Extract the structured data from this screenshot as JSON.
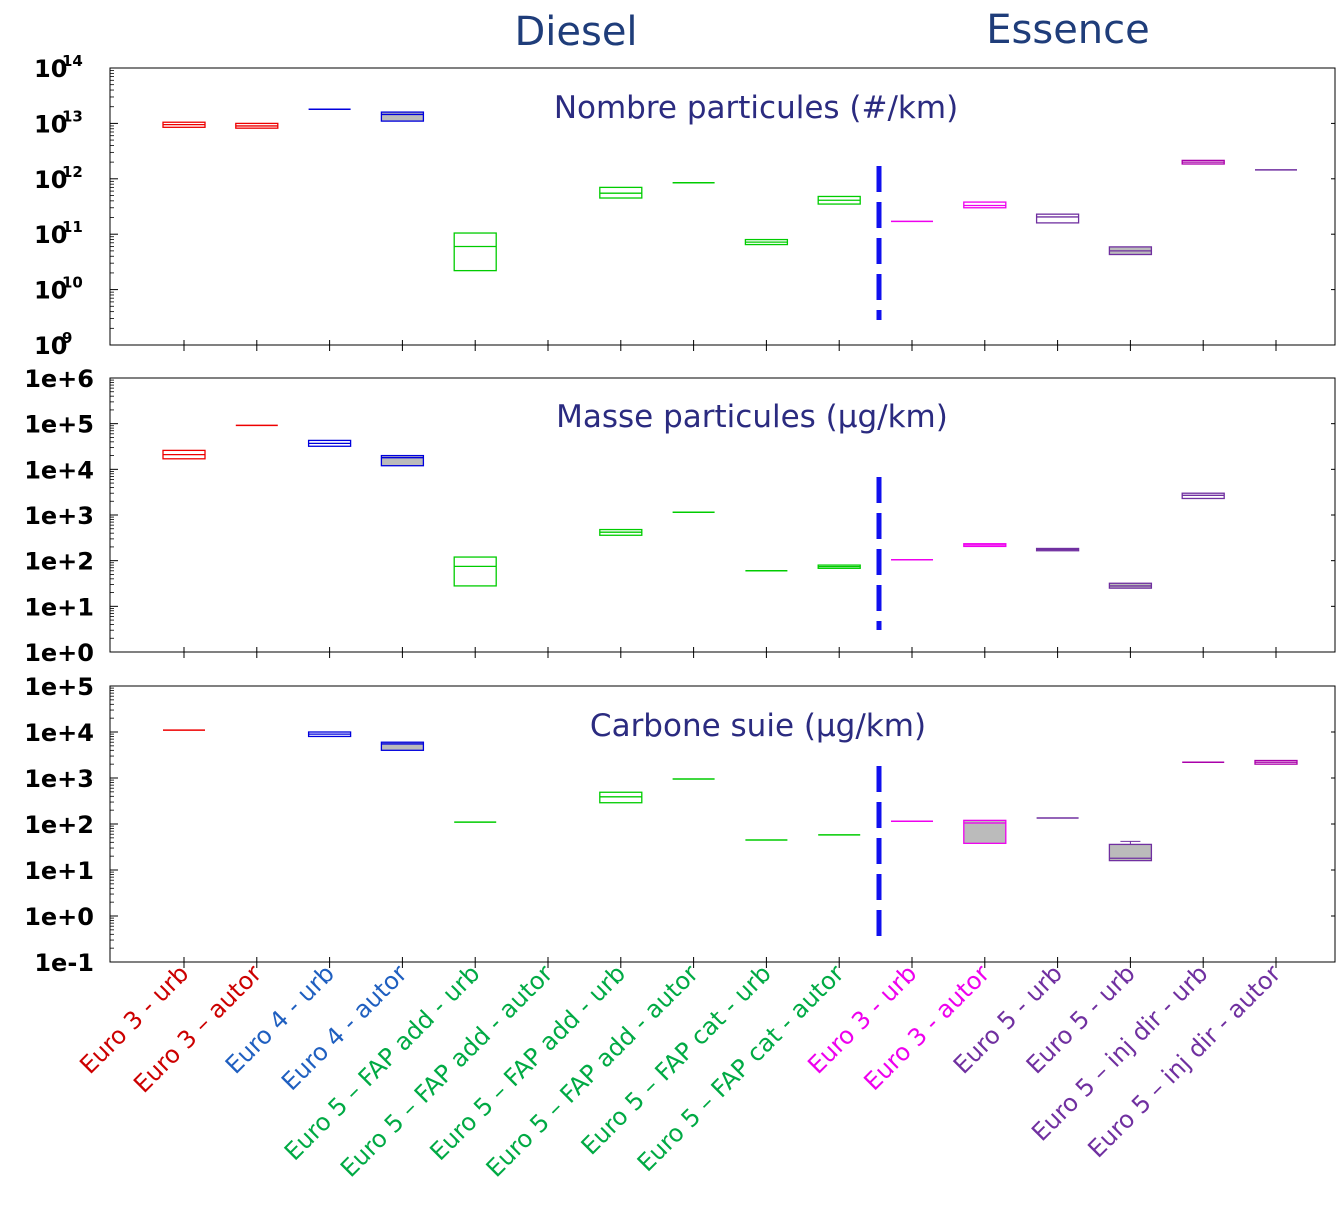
{
  "headers": {
    "diesel": "Diesel",
    "essence": "Essence"
  },
  "categories": [
    {
      "label": "Euro 3 - urb",
      "color": "#cc0000"
    },
    {
      "label": "Euro 3 – autor",
      "color": "#cc0000"
    },
    {
      "label": "Euro 4 - urb",
      "color": "#1f5fc0"
    },
    {
      "label": "Euro 4 - autor",
      "color": "#1f5fc0"
    },
    {
      "label": "Euro 5 – FAP add - urb",
      "color": "#00aa44"
    },
    {
      "label": "Euro 5 – FAP add - autor",
      "color": "#00aa44"
    },
    {
      "label": "Euro 5 – FAP add - urb",
      "color": "#00aa44"
    },
    {
      "label": "Euro 5 – FAP add - autor",
      "color": "#00aa44"
    },
    {
      "label": "Euro 5 – FAP cat - urb",
      "color": "#00aa44"
    },
    {
      "label": "Euro 5 – FAP cat - autor",
      "color": "#00aa44"
    },
    {
      "label": "Euro 3 - urb",
      "color": "#ee00ee"
    },
    {
      "label": "Euro 3 - autor",
      "color": "#ee00ee"
    },
    {
      "label": "Euro 5 - urb",
      "color": "#7030a0"
    },
    {
      "label": "Euro 5 - urb",
      "color": "#7030a0"
    },
    {
      "label": "Euro 5 – inj dir - urb",
      "color": "#7030a0"
    },
    {
      "label": "Euro 5 – inj dir - autor",
      "color": "#7030a0"
    }
  ],
  "chart_data": [
    {
      "type": "box",
      "title": "Nombre particules (#/km)",
      "yscale": "log",
      "ylim": [
        1000000000.0,
        100000000000000.0
      ],
      "tick_style": "power",
      "ytick_labels": [
        {
          "base": "10",
          "exp": "9"
        },
        {
          "base": "10",
          "exp": "10"
        },
        {
          "base": "10",
          "exp": "11"
        },
        {
          "base": "10",
          "exp": "12"
        },
        {
          "base": "10",
          "exp": "13"
        },
        {
          "base": "10",
          "exp": "14"
        }
      ],
      "boxes": [
        {
          "cat": 0,
          "low": 8500000000000.0,
          "high": 10500000000000.0,
          "med": 9500000000000.0,
          "fill": "none",
          "color": "#ee0000"
        },
        {
          "cat": 1,
          "low": 8200000000000.0,
          "high": 10000000000000.0,
          "med": 9000000000000.0,
          "fill": "none",
          "color": "#ee0000"
        },
        {
          "cat": 2,
          "low": 18000000000000.0,
          "high": 18000000000000.0,
          "med": 18000000000000.0,
          "fill": "none",
          "color": "#0000dd"
        },
        {
          "cat": 3,
          "low": 11000000000000.0,
          "high": 16000000000000.0,
          "med": 14500000000000.0,
          "fill": "#bbbbbb",
          "color": "#0000dd"
        },
        {
          "cat": 4,
          "low": 22000000000.0,
          "high": 105000000000.0,
          "med": 60000000000.0,
          "fill": "none",
          "color": "#00cc00"
        },
        {
          "cat": 6,
          "low": 450000000000.0,
          "high": 700000000000.0,
          "med": 550000000000.0,
          "fill": "none",
          "color": "#00cc00"
        },
        {
          "cat": 7,
          "low": 850000000000.0,
          "high": 850000000000.0,
          "med": 850000000000.0,
          "fill": "none",
          "color": "#00cc00"
        },
        {
          "cat": 8,
          "low": 65000000000.0,
          "high": 80000000000.0,
          "med": 72000000000.0,
          "fill": "none",
          "color": "#00cc00"
        },
        {
          "cat": 9,
          "low": 350000000000.0,
          "high": 480000000000.0,
          "med": 410000000000.0,
          "fill": "none",
          "color": "#00cc00"
        },
        {
          "cat": 10,
          "low": 170000000000.0,
          "high": 170000000000.0,
          "med": 170000000000.0,
          "fill": "none",
          "color": "#ee00ee"
        },
        {
          "cat": 11,
          "low": 300000000000.0,
          "high": 380000000000.0,
          "med": 330000000000.0,
          "fill": "none",
          "color": "#ee00ee"
        },
        {
          "cat": 12,
          "low": 160000000000.0,
          "high": 230000000000.0,
          "med": 205000000000.0,
          "fill": "none",
          "color": "#7030a0"
        },
        {
          "cat": 13,
          "low": 43000000000.0,
          "high": 59000000000.0,
          "med": 50000000000.0,
          "fill": "#bbbbbb",
          "color": "#7030a0"
        },
        {
          "cat": 14,
          "low": 1850000000000.0,
          "high": 2150000000000.0,
          "med": 2000000000000.0,
          "fill": "none",
          "color": "#aa00aa"
        },
        {
          "cat": 15,
          "low": 1450000000000.0,
          "high": 1450000000000.0,
          "med": 1450000000000.0,
          "fill": "none",
          "color": "#7030a0"
        }
      ]
    },
    {
      "type": "box",
      "title": "Masse particules (µg/km)",
      "yscale": "log",
      "ylim": [
        1,
        1000000.0
      ],
      "tick_style": "plain",
      "ytick_labels": [
        "1e+0",
        "1e+1",
        "1e+2",
        "1e+3",
        "1e+4",
        "1e+5",
        "1e+6"
      ],
      "boxes": [
        {
          "cat": 0,
          "low": 17000.0,
          "high": 26000.0,
          "med": 21000.0,
          "fill": "none",
          "color": "#ee0000"
        },
        {
          "cat": 1,
          "low": 92000.0,
          "high": 92000.0,
          "med": 92000.0,
          "fill": "none",
          "color": "#ee0000"
        },
        {
          "cat": 2,
          "low": 32000.0,
          "high": 43000.0,
          "med": 37000.0,
          "fill": "none",
          "color": "#0000dd"
        },
        {
          "cat": 3,
          "low": 12000.0,
          "high": 20000.0,
          "med": 18000.0,
          "fill": "#bbbbbb",
          "color": "#0000dd"
        },
        {
          "cat": 4,
          "low": 28,
          "high": 120,
          "med": 75,
          "fill": "none",
          "color": "#00cc00"
        },
        {
          "cat": 6,
          "low": 360,
          "high": 480,
          "med": 420,
          "fill": "none",
          "color": "#00cc00"
        },
        {
          "cat": 7,
          "low": 1150,
          "high": 1150,
          "med": 1150,
          "fill": "none",
          "color": "#00cc00"
        },
        {
          "cat": 8,
          "low": 60,
          "high": 60,
          "med": 60,
          "fill": "none",
          "color": "#00cc00"
        },
        {
          "cat": 9,
          "low": 68,
          "high": 80,
          "med": 74,
          "fill": "none",
          "color": "#00cc00"
        },
        {
          "cat": 10,
          "low": 105,
          "high": 105,
          "med": 105,
          "fill": "none",
          "color": "#ee00ee"
        },
        {
          "cat": 11,
          "low": 205,
          "high": 235,
          "med": 220,
          "fill": "none",
          "color": "#ee00ee"
        },
        {
          "cat": 12,
          "low": 165,
          "high": 185,
          "med": 175,
          "fill": "none",
          "color": "#7030a0"
        },
        {
          "cat": 13,
          "low": 25,
          "high": 32,
          "med": 28,
          "fill": "#bbbbbb",
          "color": "#7030a0"
        },
        {
          "cat": 14,
          "low": 2300,
          "high": 3000,
          "med": 2700,
          "fill": "none",
          "color": "#7030a0"
        }
      ]
    },
    {
      "type": "box",
      "title": "Carbone suie (µg/km)",
      "yscale": "log",
      "ylim": [
        0.1,
        100000.0
      ],
      "tick_style": "plain",
      "ytick_labels": [
        "1e-1",
        "1e+0",
        "1e+1",
        "1e+2",
        "1e+3",
        "1e+4",
        "1e+5"
      ],
      "boxes": [
        {
          "cat": 0,
          "low": 11000,
          "high": 11000,
          "med": 11000,
          "fill": "none",
          "color": "#ee0000"
        },
        {
          "cat": 2,
          "low": 8000,
          "high": 10000,
          "med": 9000,
          "fill": "none",
          "color": "#0000dd"
        },
        {
          "cat": 3,
          "low": 4000,
          "high": 6000,
          "med": 5500,
          "fill": "#bbbbbb",
          "color": "#0000dd"
        },
        {
          "cat": 4,
          "low": 110,
          "high": 110,
          "med": 110,
          "fill": "none",
          "color": "#00cc00"
        },
        {
          "cat": 6,
          "low": 290,
          "high": 490,
          "med": 390,
          "fill": "none",
          "color": "#00cc00"
        },
        {
          "cat": 7,
          "low": 950,
          "high": 950,
          "med": 950,
          "fill": "none",
          "color": "#00cc00"
        },
        {
          "cat": 8,
          "low": 45,
          "high": 45,
          "med": 45,
          "fill": "none",
          "color": "#00cc00"
        },
        {
          "cat": 9,
          "low": 58,
          "high": 58,
          "med": 58,
          "fill": "none",
          "color": "#00cc00"
        },
        {
          "cat": 10,
          "low": 115,
          "high": 115,
          "med": 115,
          "fill": "none",
          "color": "#ee00ee"
        },
        {
          "cat": 11,
          "low": 38,
          "high": 120,
          "med": 105,
          "fill": "#bbbbbb",
          "color": "#ee00ee"
        },
        {
          "cat": 12,
          "low": 135,
          "high": 135,
          "med": 135,
          "fill": "none",
          "color": "#7030a0"
        },
        {
          "cat": 13,
          "low": 16,
          "high": 36,
          "med": 18,
          "whisker_high": 42,
          "fill": "#bbbbbb",
          "color": "#7030a0"
        },
        {
          "cat": 14,
          "low": 2200,
          "high": 2200,
          "med": 2200,
          "fill": "none",
          "color": "#aa00aa"
        },
        {
          "cat": 15,
          "low": 2000,
          "high": 2400,
          "med": 2200,
          "fill": "none",
          "color": "#aa00aa"
        }
      ]
    }
  ]
}
